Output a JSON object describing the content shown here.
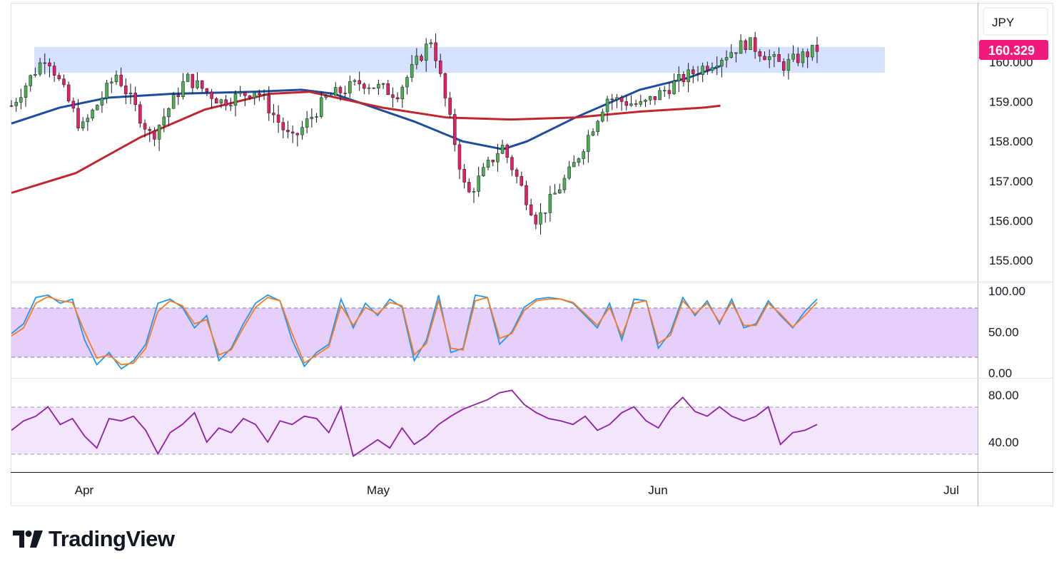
{
  "currency": "JPY",
  "last_price": "160.329",
  "brand": "TradingView",
  "colors": {
    "price_tag": "#f2197c",
    "ma_fast": "#1e4d9c",
    "ma_slow": "#c0262d",
    "zone": "#d6e2ff",
    "stoch_k": "#2196f3",
    "stoch_d": "#f57c21",
    "stoch_band": "#e6cffb",
    "rsi_line": "#8e1fa6",
    "rsi_band": "#f3e5fc",
    "candle_up": "#4caf50",
    "candle_down": "#e91e63"
  },
  "chart_data": [
    {
      "type": "candlestick",
      "price_labels": [
        "160.000",
        "159.000",
        "158.000",
        "157.000",
        "156.000",
        "155.000"
      ],
      "date_labels": [
        "Apr",
        "May",
        "Jun",
        "Jul"
      ],
      "resistance_zone": [
        159.73,
        160.38
      ],
      "key_points": [
        {
          "date": "Mar 21",
          "close": 158.9
        },
        {
          "date": "Mar 27",
          "close": 160.2
        },
        {
          "date": "Apr 04",
          "close": 158.3
        },
        {
          "date": "Apr 08",
          "close": 159.7
        },
        {
          "date": "Apr 11",
          "close": 158.1
        },
        {
          "date": "Apr 17",
          "close": 159.6
        },
        {
          "date": "Apr 21",
          "close": 159.0
        },
        {
          "date": "Apr 24",
          "close": 159.3
        },
        {
          "date": "Apr 26",
          "close": 158.0
        },
        {
          "date": "Apr 29",
          "close": 159.1
        },
        {
          "date": "May 01",
          "close": 159.5
        },
        {
          "date": "May 06",
          "close": 159.2
        },
        {
          "date": "May 09",
          "close": 160.6
        },
        {
          "date": "May 10",
          "close": 156.6
        },
        {
          "date": "May 15",
          "close": 157.9
        },
        {
          "date": "May 16",
          "close": 156.0
        },
        {
          "date": "May 22",
          "close": 157.3
        },
        {
          "date": "May 29",
          "close": 159.1
        },
        {
          "date": "Jun 04",
          "close": 158.9
        },
        {
          "date": "Jun 11",
          "close": 159.5
        },
        {
          "date": "Jun 14",
          "close": 160.0
        },
        {
          "date": "Jun 19",
          "close": 160.5
        },
        {
          "date": "Jun 21",
          "close": 159.9
        },
        {
          "date": "Jun 24",
          "close": 160.33
        }
      ],
      "moving_averages": [
        {
          "color": "#1e4d9c",
          "points": [
            [
              0,
              158.45
            ],
            [
              0.06,
              158.85
            ],
            [
              0.12,
              159.1
            ],
            [
              0.2,
              159.2
            ],
            [
              0.3,
              159.25
            ],
            [
              0.36,
              159.3
            ],
            [
              0.4,
              159.2
            ],
            [
              0.5,
              158.5
            ],
            [
              0.56,
              158.0
            ],
            [
              0.61,
              157.8
            ],
            [
              0.64,
              158.0
            ],
            [
              0.7,
              158.6
            ],
            [
              0.78,
              159.3
            ],
            [
              0.84,
              159.6
            ],
            [
              0.88,
              159.9
            ]
          ]
        },
        {
          "color": "#c0262d",
          "points": [
            [
              0,
              156.7
            ],
            [
              0.08,
              157.2
            ],
            [
              0.16,
              158.1
            ],
            [
              0.24,
              158.8
            ],
            [
              0.32,
              159.2
            ],
            [
              0.37,
              159.25
            ],
            [
              0.46,
              158.85
            ],
            [
              0.54,
              158.6
            ],
            [
              0.62,
              158.55
            ],
            [
              0.7,
              158.6
            ],
            [
              0.78,
              158.75
            ],
            [
              0.86,
              158.85
            ],
            [
              0.88,
              158.9
            ]
          ]
        }
      ]
    },
    {
      "type": "line",
      "indicator_labels": [
        "100.00",
        "50.00",
        "0.00"
      ],
      "band": [
        20,
        80
      ],
      "series": [
        {
          "color": "#2196f3",
          "values": [
            48,
            60,
            92,
            95,
            85,
            90,
            40,
            10,
            25,
            5,
            15,
            35,
            85,
            90,
            80,
            55,
            70,
            15,
            30,
            60,
            85,
            95,
            88,
            40,
            8,
            25,
            35,
            90,
            55,
            85,
            70,
            90,
            80,
            15,
            40,
            95,
            25,
            30,
            95,
            92,
            35,
            50,
            80,
            90,
            92,
            90,
            85,
            70,
            55,
            85,
            40,
            90,
            88,
            30,
            50,
            92,
            70,
            88,
            60,
            90,
            55,
            60,
            88,
            70,
            55,
            75,
            90
          ]
        },
        {
          "color": "#f57c21",
          "values": [
            45,
            55,
            85,
            93,
            88,
            86,
            50,
            18,
            22,
            10,
            12,
            30,
            75,
            88,
            82,
            60,
            65,
            22,
            28,
            55,
            80,
            92,
            88,
            48,
            12,
            22,
            32,
            82,
            58,
            80,
            72,
            86,
            82,
            22,
            36,
            88,
            30,
            28,
            88,
            92,
            42,
            48,
            76,
            88,
            90,
            90,
            86,
            72,
            58,
            80,
            45,
            85,
            88,
            36,
            46,
            88,
            72,
            85,
            62,
            86,
            58,
            58,
            85,
            72,
            56,
            70,
            86
          ]
        }
      ]
    },
    {
      "type": "line",
      "indicator_labels": [
        "80.00",
        "40.00"
      ],
      "band": [
        30,
        70
      ],
      "series": [
        {
          "color": "#8e1fa6",
          "values": [
            50,
            58,
            62,
            70,
            55,
            60,
            45,
            35,
            60,
            58,
            62,
            50,
            30,
            48,
            55,
            65,
            40,
            52,
            48,
            60,
            55,
            40,
            58,
            55,
            62,
            60,
            48,
            70,
            28,
            35,
            42,
            35,
            52,
            38,
            45,
            55,
            62,
            68,
            72,
            76,
            82,
            84,
            72,
            65,
            60,
            58,
            55,
            62,
            50,
            55,
            65,
            70,
            58,
            52,
            68,
            78,
            66,
            62,
            70,
            62,
            58,
            62,
            70,
            38,
            48,
            50,
            55
          ]
        }
      ]
    }
  ]
}
